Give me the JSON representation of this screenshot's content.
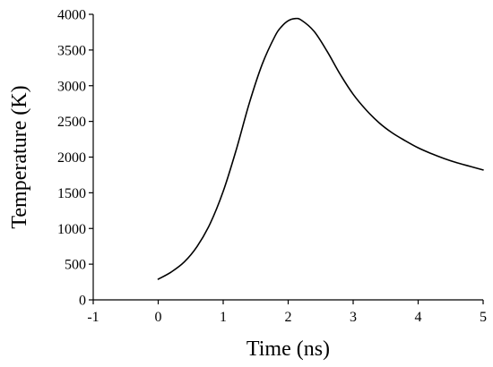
{
  "chart_data": {
    "type": "line",
    "title": "",
    "xlabel": "Time (ns)",
    "ylabel": "Temperature (K)",
    "xlim": [
      -1,
      5
    ],
    "ylim": [
      0,
      4000
    ],
    "xticks": [
      -1,
      0,
      1,
      2,
      3,
      4,
      5
    ],
    "yticks": [
      0,
      500,
      1000,
      1500,
      2000,
      2500,
      3000,
      3500,
      4000
    ],
    "xtick_labels": [
      "-1",
      "0",
      "1",
      "2",
      "3",
      "4",
      "5"
    ],
    "ytick_labels": [
      "0",
      "500",
      "1000",
      "1500",
      "2000",
      "2500",
      "3000",
      "3500",
      "4000"
    ],
    "grid": false,
    "series": [
      {
        "color": "#000000",
        "x": [
          0,
          0.2,
          0.4,
          0.6,
          0.8,
          1.0,
          1.2,
          1.4,
          1.6,
          1.8,
          1.9,
          2.0,
          2.1,
          2.2,
          2.4,
          2.6,
          2.8,
          3.0,
          3.2,
          3.4,
          3.6,
          3.8,
          4.0,
          4.2,
          4.4,
          4.6,
          4.8,
          5.0
        ],
        "y": [
          290,
          390,
          530,
          750,
          1070,
          1520,
          2100,
          2750,
          3300,
          3700,
          3830,
          3910,
          3940,
          3920,
          3760,
          3480,
          3160,
          2880,
          2660,
          2480,
          2340,
          2230,
          2130,
          2050,
          1980,
          1920,
          1870,
          1820
        ]
      }
    ]
  }
}
